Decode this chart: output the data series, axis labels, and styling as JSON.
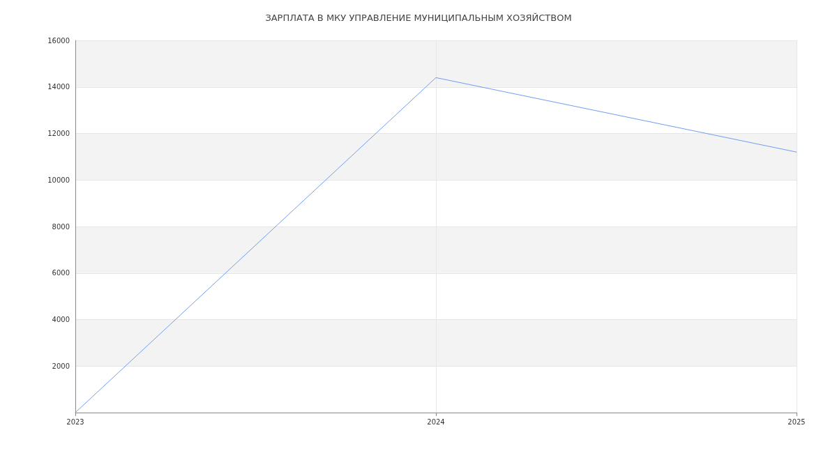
{
  "chart_data": {
    "type": "line",
    "title": "ЗАРПЛАТА В МКУ УПРАВЛЕНИЕ МУНИЦИПАЛЬНЫМ ХОЗЯЙСТВОМ",
    "x": [
      2023,
      2024,
      2025
    ],
    "series": [
      {
        "color": "#6f9cf0",
        "values": [
          0,
          14400,
          11200
        ]
      }
    ],
    "xlim": [
      2023,
      2025
    ],
    "xticks": [
      2023,
      2024,
      2025
    ],
    "ylim": [
      0,
      16000
    ],
    "yticks": [
      {
        "value": 0,
        "label": null
      },
      2000,
      4000,
      6000,
      8000,
      10000,
      12000,
      14000,
      16000
    ],
    "grid": true,
    "marker": "none",
    "line_style": "solid"
  }
}
